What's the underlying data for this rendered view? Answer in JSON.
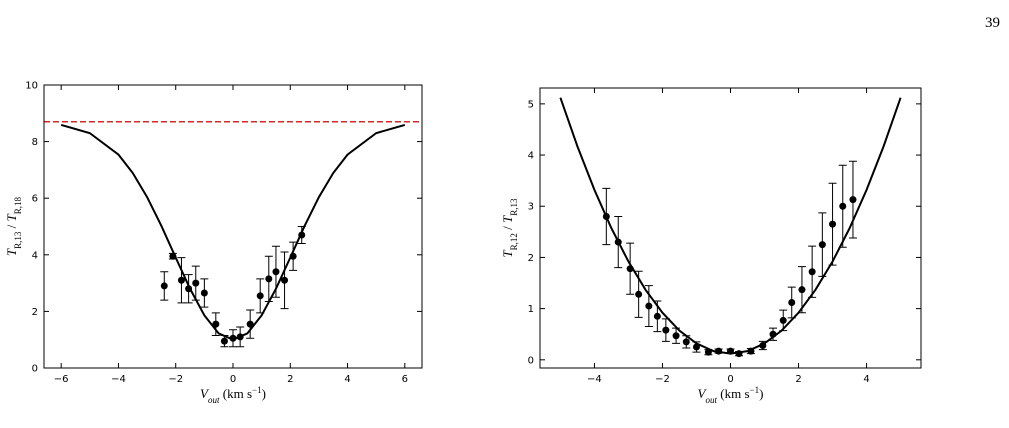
{
  "page_number": "39",
  "chart_data": [
    {
      "type": "errorbar",
      "xlabel_parts": [
        "V",
        "out",
        " (km s",
        "−1",
        ")"
      ],
      "ylabel_parts": [
        "T",
        "R,13",
        " / ",
        "T",
        "R,18"
      ],
      "xlim": [
        -6.6,
        6.6
      ],
      "ylim": [
        0,
        10
      ],
      "xticks": [
        {
          "value": -6,
          "label": "−6"
        },
        {
          "value": -4,
          "label": "−4"
        },
        {
          "value": -2,
          "label": "−2"
        },
        0,
        2,
        4,
        6
      ],
      "yticks": [
        0,
        2,
        4,
        6,
        8,
        10
      ],
      "reference_line": {
        "value": 8.7,
        "color": "#d62728",
        "style": "dashed"
      },
      "series": [
        {
          "type": "line",
          "color": "#000000",
          "x": [
            -6,
            -5,
            -4,
            -3.5,
            -3,
            -2.5,
            -2,
            -1.5,
            -1,
            -0.5,
            0,
            0.5,
            1,
            1.5,
            2,
            2.5,
            3,
            3.5,
            4,
            5,
            6
          ],
          "values": [
            8.59,
            8.3,
            7.54,
            6.89,
            6.04,
            5.02,
            3.9,
            2.8,
            1.86,
            1.22,
            1.0,
            1.22,
            1.86,
            2.8,
            3.9,
            5.02,
            6.04,
            6.89,
            7.54,
            8.3,
            8.59
          ]
        },
        {
          "type": "points",
          "color": "#000000",
          "x": [
            -2.4,
            -2.1,
            -1.8,
            -1.55,
            -1.3,
            -1.0,
            -0.6,
            -0.3,
            0.0,
            0.25,
            0.6,
            0.95,
            1.25,
            1.5,
            1.8,
            2.1,
            2.4
          ],
          "values": [
            2.9,
            3.95,
            3.1,
            2.8,
            3.0,
            2.65,
            1.55,
            0.95,
            1.05,
            1.1,
            1.55,
            2.55,
            3.15,
            3.4,
            3.1,
            3.95,
            4.7
          ],
          "errors": [
            0.5,
            0.1,
            0.8,
            0.5,
            0.6,
            0.5,
            0.4,
            0.2,
            0.3,
            0.35,
            0.5,
            0.6,
            0.8,
            0.9,
            1.0,
            0.5,
            0.3
          ]
        }
      ]
    },
    {
      "type": "errorbar",
      "xlabel_parts": [
        "V",
        "out",
        " (km s",
        "−1",
        ")"
      ],
      "ylabel_parts": [
        "T",
        "R,12",
        " / ",
        "T",
        "R,13"
      ],
      "xlim": [
        -5.6,
        5.6
      ],
      "ylim": [
        -0.16,
        5.31
      ],
      "xticks": [
        {
          "value": -4,
          "label": "−4"
        },
        {
          "value": -2,
          "label": "−2"
        },
        0,
        2,
        4
      ],
      "yticks": [
        0,
        1,
        2,
        3,
        4,
        5
      ],
      "series": [
        {
          "type": "line",
          "color": "#000000",
          "x": [
            -5,
            -4.5,
            -4,
            -3.5,
            -3,
            -2.5,
            -2,
            -1.5,
            -1,
            -0.5,
            0,
            0.5,
            1,
            1.5,
            2,
            2.5,
            3,
            3.5,
            4,
            4.5,
            5
          ],
          "values": [
            5.12,
            4.17,
            3.32,
            2.57,
            1.92,
            1.37,
            0.92,
            0.57,
            0.32,
            0.17,
            0.12,
            0.17,
            0.32,
            0.57,
            0.92,
            1.37,
            1.92,
            2.57,
            3.32,
            4.17,
            5.12
          ]
        },
        {
          "type": "points",
          "color": "#000000",
          "x": [
            -3.65,
            -3.3,
            -2.95,
            -2.7,
            -2.4,
            -2.15,
            -1.9,
            -1.6,
            -1.3,
            -1.0,
            -0.65,
            -0.35,
            0.0,
            0.25,
            0.6,
            0.95,
            1.25,
            1.55,
            1.8,
            2.1,
            2.4,
            2.7,
            3.0,
            3.3,
            3.6
          ],
          "values": [
            2.8,
            2.3,
            1.78,
            1.28,
            1.05,
            0.85,
            0.58,
            0.47,
            0.35,
            0.25,
            0.15,
            0.17,
            0.17,
            0.12,
            0.17,
            0.28,
            0.5,
            0.77,
            1.12,
            1.37,
            1.72,
            2.25,
            2.65,
            3.0,
            3.13
          ],
          "errors": [
            0.55,
            0.5,
            0.5,
            0.45,
            0.4,
            0.3,
            0.22,
            0.15,
            0.12,
            0.1,
            0.05,
            0.04,
            0.04,
            0.04,
            0.05,
            0.08,
            0.12,
            0.2,
            0.3,
            0.45,
            0.5,
            0.62,
            0.8,
            0.8,
            0.75
          ]
        }
      ]
    }
  ]
}
